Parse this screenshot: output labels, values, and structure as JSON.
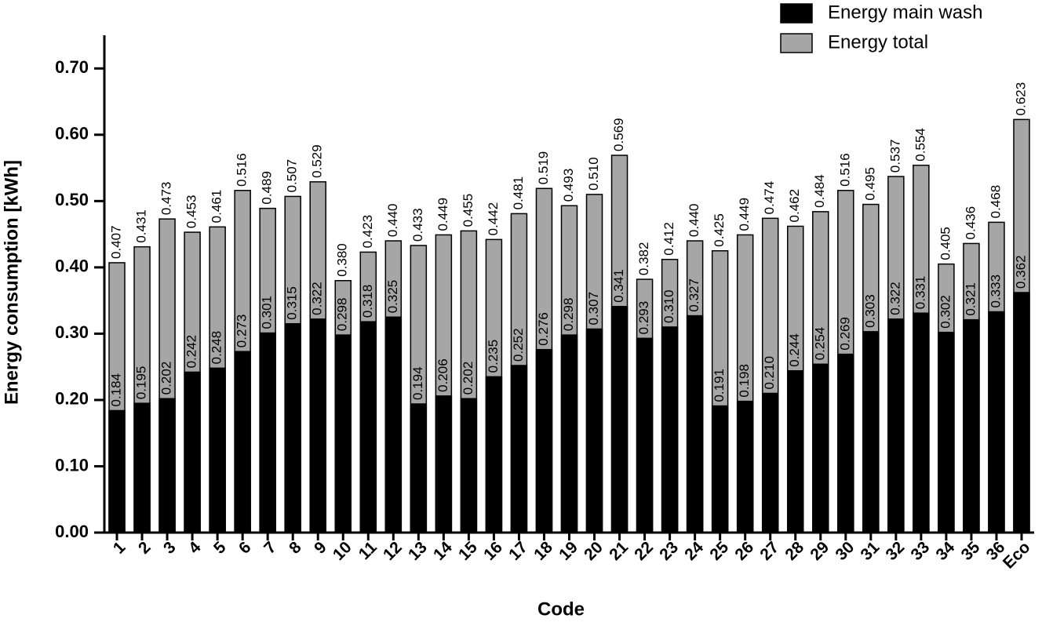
{
  "chart_data": {
    "type": "bar",
    "x_label": "Code",
    "y_label": "Energy consumption [kWh]",
    "legend_position": "top-right",
    "categories": [
      "1",
      "2",
      "3",
      "4",
      "5",
      "6",
      "7",
      "8",
      "9",
      "10",
      "11",
      "12",
      "13",
      "14",
      "15",
      "16",
      "17",
      "18",
      "19",
      "20",
      "21",
      "22",
      "23",
      "24",
      "25",
      "26",
      "27",
      "28",
      "29",
      "30",
      "31",
      "32",
      "33",
      "34",
      "35",
      "36",
      "Eco"
    ],
    "series": [
      {
        "name": "Energy main wash",
        "color": "#000000",
        "values": [
          0.184,
          0.195,
          0.202,
          0.242,
          0.248,
          0.273,
          0.301,
          0.315,
          0.322,
          0.298,
          0.318,
          0.325,
          0.194,
          0.206,
          0.202,
          0.235,
          0.252,
          0.276,
          0.298,
          0.307,
          0.341,
          0.293,
          0.31,
          0.327,
          0.191,
          0.198,
          0.21,
          0.244,
          0.254,
          0.269,
          0.303,
          0.322,
          0.331,
          0.302,
          0.321,
          0.333,
          0.362
        ],
        "value_labels": [
          "0.184",
          "0.195",
          "0.202",
          "0.242",
          "0.248",
          "0.273",
          "0.301",
          "0.315",
          "0.322",
          "0.298",
          "0.318",
          "0.325",
          "0.194",
          "0.206",
          "0.202",
          "0.235",
          "0.252",
          "0.276",
          "0.298",
          "0.307",
          "0.341",
          "0.293",
          "0.310",
          "0.327",
          "0.191",
          "0.198",
          "0.210",
          "0.244",
          "0.254",
          "0.269",
          "0.303",
          "0.322",
          "0.331",
          "0.302",
          "0.321",
          "0.333",
          "0.362"
        ]
      },
      {
        "name": "Energy total",
        "color": "#a6a6a6",
        "values": [
          0.407,
          0.431,
          0.473,
          0.453,
          0.461,
          0.516,
          0.489,
          0.507,
          0.529,
          0.38,
          0.423,
          0.44,
          0.433,
          0.449,
          0.455,
          0.442,
          0.481,
          0.519,
          0.493,
          0.51,
          0.569,
          0.382,
          0.412,
          0.44,
          0.425,
          0.449,
          0.474,
          0.462,
          0.484,
          0.516,
          0.495,
          0.537,
          0.554,
          0.405,
          0.436,
          0.468,
          0.623
        ],
        "value_labels": [
          "0.407",
          "0.431",
          "0.473",
          "0.453",
          "0.461",
          "0.516",
          "0.489",
          "0.507",
          "0.529",
          "0.380",
          "0.423",
          "0.440",
          "0.433",
          "0.449",
          "0.455",
          "0.442",
          "0.481",
          "0.519",
          "0.493",
          "0.510",
          "0.569",
          "0.382",
          "0.412",
          "0.440",
          "0.425",
          "0.449",
          "0.474",
          "0.462",
          "0.484",
          "0.516",
          "0.495",
          "0.537",
          "0.554",
          "0.405",
          "0.436",
          "0.468",
          "0.623"
        ]
      }
    ],
    "ylim": [
      0,
      0.75
    ],
    "yticks": [
      {
        "value": 0,
        "label": "0.00"
      },
      {
        "value": 0.1,
        "label": "0.10"
      },
      {
        "value": 0.2,
        "label": "0.20"
      },
      {
        "value": 0.3,
        "label": "0.30"
      },
      {
        "value": 0.4,
        "label": "0.40"
      },
      {
        "value": 0.5,
        "label": "0.50"
      },
      {
        "value": 0.6,
        "label": "0.60"
      },
      {
        "value": 0.7,
        "label": "0.70"
      }
    ]
  }
}
